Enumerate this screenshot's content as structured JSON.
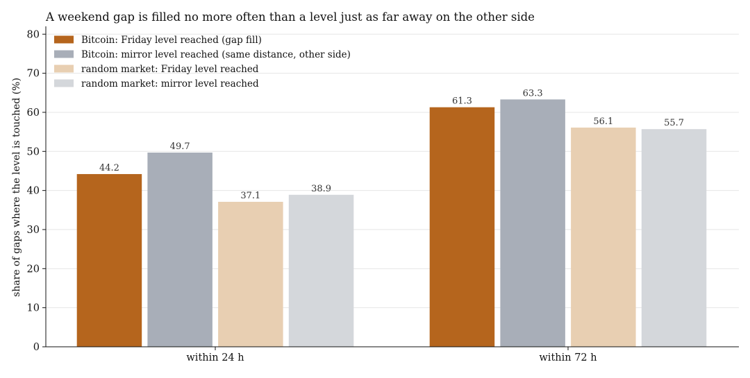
{
  "chart_data": {
    "type": "bar",
    "title": "A weekend gap is filled no more often than a level just as far away on the other side",
    "xlabel": "",
    "ylabel": "share of gaps where the level is touched (%)",
    "categories": [
      "within 24 h",
      "within 72 h"
    ],
    "ylim": [
      0,
      82
    ],
    "yticks": [
      0,
      10,
      20,
      30,
      40,
      50,
      60,
      70,
      80
    ],
    "grid": "horizontal",
    "legend_position": "top-left",
    "series": [
      {
        "name": "Bitcoin: Friday level reached (gap fill)",
        "values": [
          44.2,
          61.3
        ],
        "color": "#b5651d"
      },
      {
        "name": "Bitcoin: mirror level reached (same distance, other side)",
        "values": [
          49.7,
          63.3
        ],
        "color": "#a8aeb8"
      },
      {
        "name": "random market: Friday level reached",
        "values": [
          37.1,
          56.1
        ],
        "color": "#e8cfb2"
      },
      {
        "name": "random market: mirror level reached",
        "values": [
          38.9,
          55.7
        ],
        "color": "#d4d7db"
      }
    ]
  }
}
